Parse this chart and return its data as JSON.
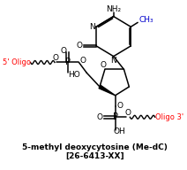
{
  "title_line1": "5-methyl deoxycytosine (Me-dC)",
  "title_line2": "[26-6413-XX]",
  "bg_color": "#ffffff",
  "line_color": "#000000",
  "red_color": "#ff0000",
  "blue_color": "#0000cc",
  "label_NH2": "NH₂",
  "label_CH3": "CH₃",
  "label_N": "N",
  "label_O": "O",
  "label_P": "P",
  "label_HO": "HO",
  "label_OH": "OH",
  "label_5prime": "5' Oligo",
  "label_3prime": "Oligo 3'",
  "figsize": [
    2.12,
    1.92
  ],
  "dpi": 100
}
